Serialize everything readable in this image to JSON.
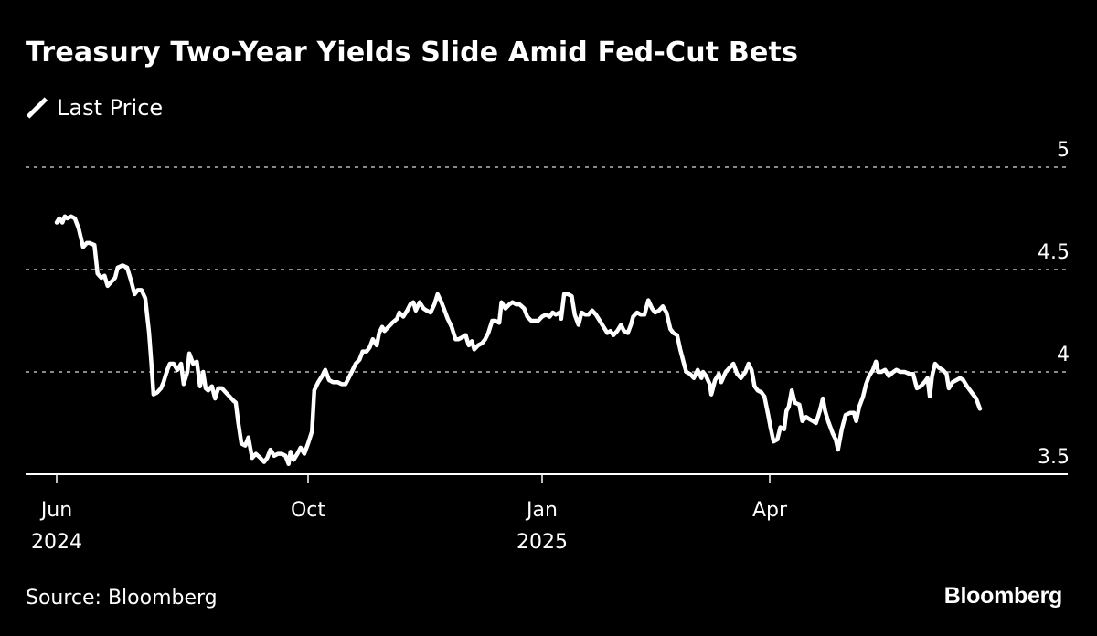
{
  "chart_data": {
    "type": "line",
    "title": "Treasury Two-Year Yields Slide Amid Fed-Cut Bets",
    "xlabel": "",
    "ylabel": "",
    "ylim": [
      3.5,
      5
    ],
    "yticks": [
      {
        "value": 5,
        "label": "5"
      },
      {
        "value": 4.5,
        "label": "4.5"
      },
      {
        "value": 4,
        "label": "4"
      },
      {
        "value": 3.5,
        "label": "3.5"
      }
    ],
    "x_unit": "months since Jun 2024",
    "xticks": [
      {
        "value": 0,
        "label": "Jun",
        "sublabel": "2024"
      },
      {
        "value": 4,
        "label": "Oct",
        "sublabel": ""
      },
      {
        "value": 7,
        "label": "Jan",
        "sublabel": "2025"
      },
      {
        "value": 10,
        "label": "Apr",
        "sublabel": ""
      }
    ],
    "grid": "horizontal-dotted",
    "legend_position": "top-left",
    "colors": {
      "background": "#000000",
      "line": "#ffffff",
      "grid": "#8a8a8a",
      "text": "#ffffff"
    },
    "series": [
      {
        "name": "Last Price",
        "x": [
          0.0,
          0.04,
          0.09,
          0.13,
          0.17,
          0.23,
          0.29,
          0.35,
          0.42,
          0.48,
          0.52,
          0.6,
          0.65,
          0.71,
          0.76,
          0.81,
          0.87,
          0.93,
          0.97,
          1.05,
          1.12,
          1.18,
          1.24,
          1.29,
          1.35,
          1.41,
          1.47,
          1.51,
          1.54,
          1.6,
          1.66,
          1.7,
          1.76,
          1.8,
          1.86,
          1.92,
          1.98,
          2.02,
          2.08,
          2.11,
          2.17,
          2.23,
          2.28,
          2.33,
          2.37,
          2.41,
          2.47,
          2.52,
          2.57,
          2.63,
          2.69,
          2.75,
          2.81,
          2.85,
          2.89,
          2.94,
          3.0,
          3.05,
          3.11,
          3.17,
          3.24,
          3.3,
          3.35,
          3.4,
          3.46,
          3.52,
          3.58,
          3.64,
          3.69,
          3.72,
          3.77,
          3.83,
          3.88,
          3.94,
          4.0,
          4.05,
          4.08,
          4.13,
          4.18,
          4.22,
          4.27,
          4.32,
          4.38,
          4.43,
          4.48,
          4.52,
          4.56,
          4.61,
          4.66,
          4.7,
          4.75,
          4.79,
          4.83,
          4.88,
          4.91,
          4.95,
          4.98,
          5.03,
          5.08,
          5.14,
          5.17,
          5.22,
          5.27,
          5.31,
          5.35,
          5.38,
          5.43,
          5.48,
          5.52,
          5.57,
          5.62,
          5.66,
          5.71,
          5.76,
          5.79,
          5.84,
          5.89,
          5.93,
          5.98,
          6.02,
          6.06,
          6.1,
          6.13,
          6.18,
          6.23,
          6.27,
          6.31,
          6.36,
          6.4,
          6.45,
          6.48,
          6.53,
          6.58,
          6.62,
          6.67,
          6.71,
          6.77,
          6.81,
          6.86,
          6.91,
          6.95,
          7.0,
          7.05,
          7.1,
          7.14,
          7.18,
          7.23,
          7.25,
          7.29,
          7.34,
          7.39,
          7.43,
          7.48,
          7.52,
          7.57,
          7.61,
          7.66,
          7.71,
          7.76,
          7.81,
          7.86,
          7.9,
          7.94,
          7.99,
          8.04,
          8.08,
          8.13,
          8.17,
          8.2,
          8.25,
          8.3,
          8.35,
          8.4,
          8.45,
          8.49,
          8.54,
          8.59,
          8.64,
          8.69,
          8.73,
          8.78,
          8.82,
          8.87,
          8.9,
          8.95,
          9.0,
          9.05,
          9.1,
          9.12,
          9.16,
          9.21,
          9.23,
          9.28,
          9.33,
          9.36,
          9.42,
          9.47,
          9.52,
          9.57,
          9.62,
          9.68,
          9.72,
          9.76,
          9.8,
          9.84,
          9.89,
          9.93,
          9.98,
          10.01,
          10.05,
          10.1,
          10.14,
          10.19,
          10.22,
          10.25,
          10.29,
          10.33,
          10.39,
          10.43,
          10.48,
          10.52,
          10.57,
          10.61,
          10.66,
          10.7,
          10.73,
          10.77,
          10.83,
          10.87,
          10.9,
          10.95,
          11.0,
          11.06,
          11.11,
          11.14,
          11.18,
          11.23,
          11.27,
          11.31,
          11.36,
          11.4,
          11.43,
          11.47,
          11.52,
          11.57,
          11.63,
          11.67,
          11.72,
          11.78,
          11.84,
          11.89,
          11.94,
          11.99,
          12.04,
          12.08,
          12.11,
          12.14,
          12.18,
          12.23,
          12.28,
          12.33,
          12.36,
          12.41,
          12.46,
          12.51,
          12.55,
          12.6,
          12.66,
          12.72,
          12.77
        ],
        "values": [
          4.73,
          4.75,
          4.73,
          4.76,
          4.75,
          4.76,
          4.75,
          4.7,
          4.61,
          4.63,
          4.63,
          4.62,
          4.48,
          4.46,
          4.47,
          4.42,
          4.44,
          4.46,
          4.51,
          4.52,
          4.51,
          4.45,
          4.38,
          4.4,
          4.4,
          4.36,
          4.19,
          4.03,
          3.89,
          3.9,
          3.92,
          3.95,
          4.01,
          4.04,
          4.04,
          4.01,
          4.04,
          3.94,
          4.0,
          4.09,
          4.04,
          4.05,
          3.93,
          4.0,
          3.92,
          3.91,
          3.93,
          3.87,
          3.92,
          3.92,
          3.9,
          3.88,
          3.86,
          3.85,
          3.75,
          3.65,
          3.64,
          3.68,
          3.58,
          3.6,
          3.58,
          3.56,
          3.58,
          3.62,
          3.59,
          3.6,
          3.6,
          3.59,
          3.55,
          3.61,
          3.57,
          3.6,
          3.63,
          3.6,
          3.65,
          3.71,
          3.91,
          3.95,
          3.98,
          4.01,
          3.96,
          3.95,
          3.95,
          3.94,
          3.94,
          3.97,
          4.0,
          4.04,
          4.06,
          4.1,
          4.1,
          4.12,
          4.16,
          4.13,
          4.19,
          4.22,
          4.2,
          4.22,
          4.24,
          4.26,
          4.29,
          4.27,
          4.3,
          4.33,
          4.34,
          4.3,
          4.34,
          4.31,
          4.3,
          4.29,
          4.33,
          4.38,
          4.34,
          4.29,
          4.26,
          4.22,
          4.16,
          4.16,
          4.17,
          4.18,
          4.13,
          4.15,
          4.11,
          4.13,
          4.14,
          4.16,
          4.19,
          4.25,
          4.25,
          4.24,
          4.34,
          4.31,
          4.33,
          4.34,
          4.33,
          4.33,
          4.31,
          4.27,
          4.25,
          4.25,
          4.25,
          4.27,
          4.28,
          4.27,
          4.29,
          4.28,
          4.29,
          4.26,
          4.38,
          4.38,
          4.37,
          4.28,
          4.23,
          4.29,
          4.28,
          4.28,
          4.3,
          4.28,
          4.25,
          4.22,
          4.19,
          4.2,
          4.18,
          4.2,
          4.23,
          4.2,
          4.19,
          4.23,
          4.27,
          4.29,
          4.28,
          4.28,
          4.35,
          4.31,
          4.29,
          4.3,
          4.32,
          4.29,
          4.21,
          4.19,
          4.18,
          4.11,
          4.04,
          4.0,
          3.99,
          3.97,
          4.01,
          3.97,
          4.0,
          3.98,
          3.94,
          3.89,
          3.96,
          3.99,
          3.95,
          4.0,
          4.02,
          4.04,
          3.99,
          3.97,
          4.0,
          4.04,
          4.01,
          3.93,
          3.91,
          3.9,
          3.88,
          3.79,
          3.73,
          3.66,
          3.67,
          3.73,
          3.72,
          3.81,
          3.83,
          3.91,
          3.85,
          3.84,
          3.76,
          3.78,
          3.77,
          3.76,
          3.75,
          3.81,
          3.87,
          3.81,
          3.76,
          3.7,
          3.67,
          3.62,
          3.72,
          3.79,
          3.8,
          3.8,
          3.76,
          3.83,
          3.88,
          3.94,
          3.98,
          4.01,
          4.05,
          4.0,
          4.0,
          4.01,
          3.98,
          4.0,
          4.01,
          4.0,
          4.0,
          3.99,
          3.99,
          3.92,
          3.93,
          3.95,
          3.97,
          3.88,
          3.98,
          4.04,
          4.02,
          4.01,
          3.99,
          3.92,
          3.95,
          3.96,
          3.97,
          3.96,
          3.93,
          3.9,
          3.87,
          3.82
        ]
      }
    ]
  },
  "header": {
    "title": "Treasury Two-Year Yields Slide Amid Fed-Cut Bets",
    "legend_label": "Last Price"
  },
  "footer": {
    "source": "Source: Bloomberg",
    "brand": "Bloomberg"
  }
}
